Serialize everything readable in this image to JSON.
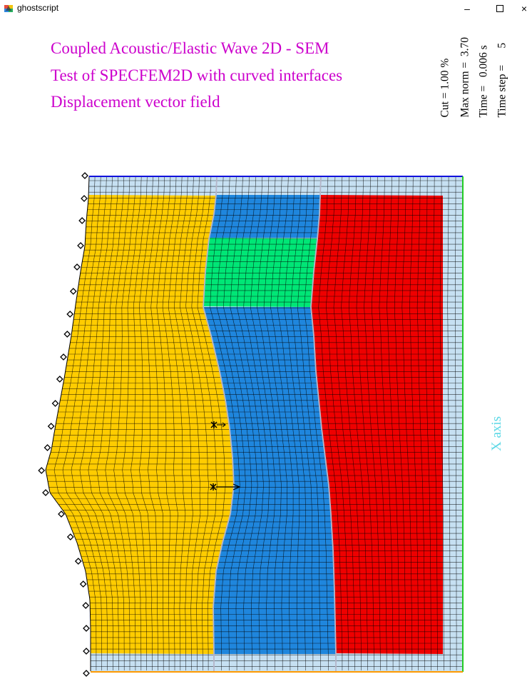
{
  "window": {
    "title": "ghostscript",
    "minimize_symbol": "–",
    "close_symbol": "×"
  },
  "figure": {
    "title_lines": [
      "Coupled Acoustic/Elastic Wave 2D - SEM",
      "Test of SPECFEM2D with curved interfaces",
      "Displacement vector field"
    ],
    "info": {
      "cut": "Cut = 1.00 %",
      "max_norm": "Max norm =  3.70",
      "time": "Time =   0.006 s",
      "time_step": "Time step =      5"
    },
    "axis_label": "X axis"
  },
  "colors": {
    "title": "#cc00cc",
    "axis_label": "#5bd8e6",
    "absorbing_layer": "#c6e0f2",
    "yellow_layer": "#ffcc00",
    "blue_layer": "#1f86dd",
    "green_layer": "#00e676",
    "red_layer": "#ee0000",
    "top_edge": "#1010dd",
    "right_edge": "#22cc22",
    "bottom_edge": "#ff9900"
  },
  "icons": [
    "ghostscript-app-icon",
    "minimize-icon",
    "maximize-icon",
    "close-icon",
    "receiver-diamond-icon",
    "source-star-icon"
  ]
}
